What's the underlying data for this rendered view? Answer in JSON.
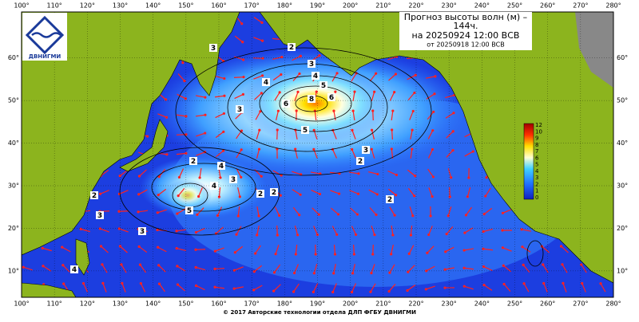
{
  "header": {
    "title_line1": "Прогноз высоты волн (м) –",
    "title_line2": "144ч.",
    "valid": "на 20250924 12:00 ВСВ",
    "issued": "от 20250918 12:00 ВСВ"
  },
  "logo": {
    "text": "ДВНИГМИ"
  },
  "footer": "© 2017 Авторские технологии отдела ДЛП ФГБУ ДВНИГМИ",
  "map": {
    "lonlim": [
      100,
      280
    ],
    "latlim": [
      3.8,
      70.8
    ],
    "lon_ticks": [
      {
        "value": 100,
        "label": "100°"
      },
      {
        "value": 110,
        "label": "110°"
      },
      {
        "value": 120,
        "label": "120°"
      },
      {
        "value": 130,
        "label": "130°"
      },
      {
        "value": 140,
        "label": "140°"
      },
      {
        "value": 150,
        "label": "150°"
      },
      {
        "value": 160,
        "label": "160°"
      },
      {
        "value": 170,
        "label": "170°"
      },
      {
        "value": 180,
        "label": "180°"
      },
      {
        "value": 190,
        "label": "190°"
      },
      {
        "value": 200,
        "label": "200°"
      },
      {
        "value": 210,
        "label": "210°"
      },
      {
        "value": 220,
        "label": "220°"
      },
      {
        "value": 230,
        "label": "230°"
      },
      {
        "value": 240,
        "label": "240°"
      },
      {
        "value": 250,
        "label": "250°"
      },
      {
        "value": 260,
        "label": "260°"
      },
      {
        "value": 270,
        "label": "270°"
      },
      {
        "value": 280,
        "label": "280°"
      }
    ],
    "lat_ticks": [
      {
        "value": 10,
        "label": "10°"
      },
      {
        "value": 20,
        "label": "20°"
      },
      {
        "value": 30,
        "label": "30°"
      },
      {
        "value": 40,
        "label": "40°"
      },
      {
        "value": 50,
        "label": "50°"
      },
      {
        "value": 60,
        "label": "60°"
      }
    ],
    "contour_labels": [
      2,
      3,
      4,
      5,
      6,
      8,
      6,
      5,
      3,
      4,
      3,
      2,
      4,
      4,
      3,
      5,
      2,
      2,
      3,
      2,
      3,
      2,
      3,
      4,
      2
    ]
  },
  "colorbar": {
    "ticks": [
      12,
      10,
      9,
      8,
      7,
      6,
      5,
      4,
      3,
      2,
      1,
      0
    ]
  }
}
